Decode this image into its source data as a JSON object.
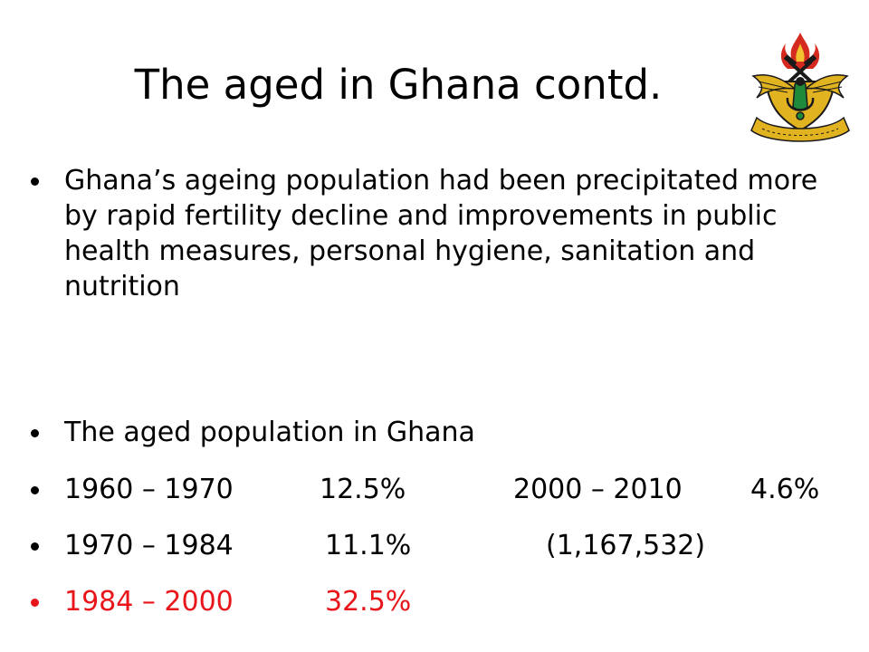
{
  "title": "The aged in Ghana contd.",
  "logo": {
    "icon": "university-crest-icon",
    "colors": {
      "gold": "#e2b321",
      "green": "#1f8a3a",
      "red": "#d42a1f",
      "black": "#1a1a1a"
    }
  },
  "bullets": [
    {
      "text": "Ghana’s ageing population had been precipitated more by rapid fertility decline and improvements in public health measures, personal hygiene, sanitation and nutrition"
    },
    {
      "text": "The aged population in Ghana"
    },
    {
      "period": "1960 – 1970",
      "value": "12.5%",
      "period2": "2000 – 2010",
      "value2": "4.6%"
    },
    {
      "period": "1970 – 1984",
      "value": "11.1%",
      "extra": "(1,167,532)"
    },
    {
      "period": "1984 – 2000",
      "value": "32.5%",
      "color": "#e8161b"
    }
  ]
}
